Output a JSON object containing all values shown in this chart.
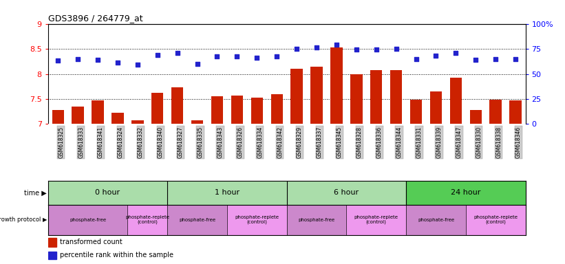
{
  "title": "GDS3896 / 264779_at",
  "samples": [
    "GSM618325",
    "GSM618333",
    "GSM618341",
    "GSM618324",
    "GSM618332",
    "GSM618340",
    "GSM618327",
    "GSM618335",
    "GSM618343",
    "GSM618326",
    "GSM618334",
    "GSM618342",
    "GSM618329",
    "GSM618337",
    "GSM618345",
    "GSM618328",
    "GSM618336",
    "GSM618344",
    "GSM618331",
    "GSM618339",
    "GSM618347",
    "GSM618330",
    "GSM618338",
    "GSM618346"
  ],
  "bar_values": [
    7.28,
    7.35,
    7.47,
    7.23,
    7.07,
    7.63,
    7.73,
    7.07,
    7.55,
    7.57,
    7.53,
    7.6,
    8.1,
    8.15,
    8.53,
    8.0,
    8.07,
    8.07,
    7.48,
    7.65,
    7.93,
    7.28,
    7.48,
    7.47
  ],
  "dot_values": [
    8.27,
    8.3,
    8.28,
    8.22,
    8.18,
    8.38,
    8.42,
    8.2,
    8.35,
    8.35,
    8.32,
    8.35,
    8.5,
    8.53,
    8.58,
    8.48,
    8.48,
    8.5,
    8.3,
    8.37,
    8.42,
    8.28,
    8.3,
    8.3
  ],
  "time_groups": [
    {
      "label": "0 hour",
      "start": 0,
      "end": 6,
      "color": "#aaddaa"
    },
    {
      "label": "1 hour",
      "start": 6,
      "end": 12,
      "color": "#aaddaa"
    },
    {
      "label": "6 hour",
      "start": 12,
      "end": 18,
      "color": "#aaddaa"
    },
    {
      "label": "24 hour",
      "start": 18,
      "end": 24,
      "color": "#55cc55"
    }
  ],
  "protocol_groups": [
    {
      "label": "phosphate-free",
      "start": 0,
      "end": 4,
      "color": "#cc88cc"
    },
    {
      "label": "phosphate-replete\n(control)",
      "start": 4,
      "end": 6,
      "color": "#ee99ee"
    },
    {
      "label": "phosphate-free",
      "start": 6,
      "end": 9,
      "color": "#cc88cc"
    },
    {
      "label": "phosphate-replete\n(control)",
      "start": 9,
      "end": 12,
      "color": "#ee99ee"
    },
    {
      "label": "phosphate-free",
      "start": 12,
      "end": 15,
      "color": "#cc88cc"
    },
    {
      "label": "phosphate-replete\n(control)",
      "start": 15,
      "end": 18,
      "color": "#ee99ee"
    },
    {
      "label": "phosphate-free",
      "start": 18,
      "end": 21,
      "color": "#cc88cc"
    },
    {
      "label": "phosphate-replete\n(control)",
      "start": 21,
      "end": 24,
      "color": "#ee99ee"
    }
  ],
  "ylim_left": [
    7.0,
    9.0
  ],
  "ylim_right": [
    0,
    100
  ],
  "yticks_left": [
    7.0,
    7.5,
    8.0,
    8.5,
    9.0
  ],
  "yticks_right": [
    0,
    25,
    50,
    75,
    100
  ],
  "bar_color": "#cc2200",
  "dot_color": "#2222cc",
  "tick_label_bg": "#cccccc",
  "legend_bar_label": "transformed count",
  "legend_dot_label": "percentile rank within the sample",
  "time_row_label": "time",
  "proto_row_label": "growth protocol"
}
